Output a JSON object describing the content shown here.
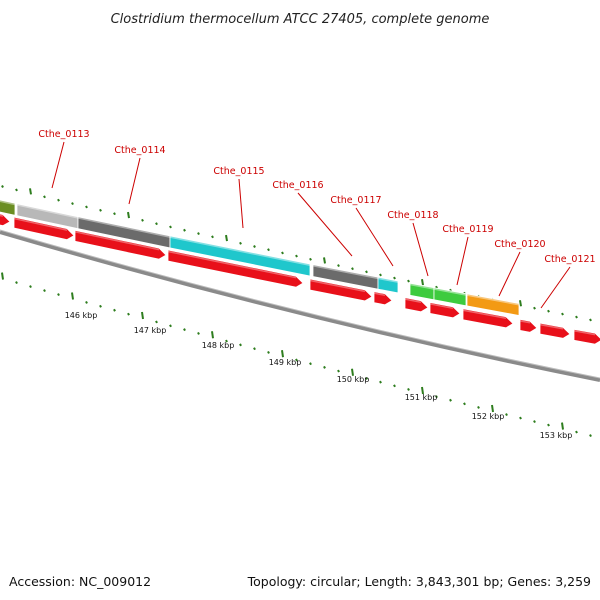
{
  "title": "Clostridium thermocellum ATCC 27405, complete genome",
  "footer": {
    "accession": "Accession: NC_009012",
    "summary": "Topology: circular; Length: 3,843,301 bp; Genes: 3,259"
  },
  "colors": {
    "cds_red": "#e8101a",
    "backbone": "#8a8a8a",
    "tick_green": "#2e7d1e",
    "label_red": "#cc0000"
  },
  "genes": [
    {
      "name": "Cthe_0113",
      "color": "#b8b8b8"
    },
    {
      "name": "Cthe_0114",
      "color": "#6b6b6b"
    },
    {
      "name": "Cthe_0115",
      "color": "#1fc7cc"
    },
    {
      "name": "Cthe_0116",
      "color": "#6b6b6b"
    },
    {
      "name": "Cthe_0117",
      "color": "#1fc7cc"
    },
    {
      "name": "Cthe_0118",
      "color": "#3ecb3e"
    },
    {
      "name": "Cthe_0119",
      "color": "#3ecb3e"
    },
    {
      "name": "Cthe_0120",
      "color": "#f39a14"
    },
    {
      "name": "Cthe_0121",
      "color": "#e8101a"
    }
  ],
  "scale_labels": [
    "146 kbp",
    "147 kbp",
    "148 kbp",
    "149 kbp",
    "150 kbp",
    "151 kbp",
    "152 kbp",
    "153 kbp"
  ]
}
